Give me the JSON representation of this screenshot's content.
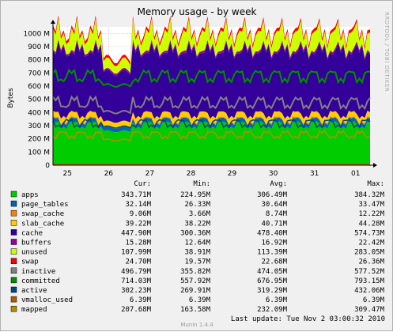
{
  "chart_data": {
    "type": "area",
    "title": "Memory usage - by week",
    "ylabel": "Bytes",
    "xlabel": "",
    "ylim": [
      0,
      1050000000
    ],
    "y_ticks": [
      0,
      100000000,
      200000000,
      300000000,
      400000000,
      500000000,
      600000000,
      700000000,
      800000000,
      900000000,
      1000000000
    ],
    "y_tick_labels": [
      "0",
      "100 M",
      "200 M",
      "300 M",
      "400 M",
      "500 M",
      "600 M",
      "700 M",
      "800 M",
      "900 M",
      "1000 M"
    ],
    "x_tick_labels": [
      "25",
      "26",
      "27",
      "28",
      "29",
      "30",
      "31",
      "01"
    ],
    "grid": true,
    "stacked_series": [
      "apps",
      "page_tables",
      "swap_cache",
      "slab_cache",
      "cache",
      "buffers",
      "unused",
      "swap"
    ],
    "line_series": [
      "inactive",
      "committed",
      "active",
      "vmalloc_used",
      "mapped"
    ],
    "column_headers": [
      "Cur:",
      "Min:",
      "Avg:",
      "Max:"
    ],
    "series": [
      {
        "name": "apps",
        "color": "#00CC00",
        "cur": "343.71M",
        "min": "224.95M",
        "avg": "306.49M",
        "max": "384.32M"
      },
      {
        "name": "page_tables",
        "color": "#0066B3",
        "cur": "32.14M",
        "min": "26.33M",
        "avg": "30.64M",
        "max": "33.47M"
      },
      {
        "name": "swap_cache",
        "color": "#FF8000",
        "cur": "9.06M",
        "min": "3.66M",
        "avg": "8.74M",
        "max": "12.22M"
      },
      {
        "name": "slab_cache",
        "color": "#FFCC00",
        "cur": "39.22M",
        "min": "38.22M",
        "avg": "40.71M",
        "max": "44.28M"
      },
      {
        "name": "cache",
        "color": "#330099",
        "cur": "447.90M",
        "min": "300.36M",
        "avg": "478.40M",
        "max": "574.73M"
      },
      {
        "name": "buffers",
        "color": "#990099",
        "cur": "15.28M",
        "min": "12.64M",
        "avg": "16.92M",
        "max": "22.42M"
      },
      {
        "name": "unused",
        "color": "#CCFF00",
        "cur": "107.99M",
        "min": "38.91M",
        "avg": "113.39M",
        "max": "283.05M"
      },
      {
        "name": "swap",
        "color": "#FF0000",
        "cur": "24.70M",
        "min": "19.57M",
        "avg": "22.68M",
        "max": "26.36M"
      },
      {
        "name": "inactive",
        "color": "#808080",
        "cur": "496.79M",
        "min": "355.82M",
        "avg": "474.05M",
        "max": "577.52M"
      },
      {
        "name": "committed",
        "color": "#008F00",
        "cur": "714.03M",
        "min": "557.92M",
        "avg": "676.95M",
        "max": "793.15M"
      },
      {
        "name": "active",
        "color": "#00487D",
        "cur": "302.23M",
        "min": "269.91M",
        "avg": "319.29M",
        "max": "432.06M"
      },
      {
        "name": "vmalloc_used",
        "color": "#B35A00",
        "cur": "6.39M",
        "min": "6.39M",
        "avg": "6.39M",
        "max": "6.39M"
      },
      {
        "name": "mapped",
        "color": "#B38F00",
        "cur": "207.68M",
        "min": "163.58M",
        "avg": "232.09M",
        "max": "309.47M"
      }
    ]
  },
  "footer": {
    "last_update": "Last update:  Tue Nov  2 03:00:32 2010",
    "version": "Munin 1.4.4"
  },
  "watermark": "RRDTOOL / TOBI OETIKER"
}
